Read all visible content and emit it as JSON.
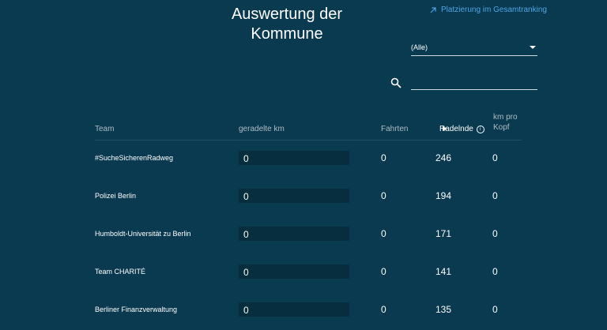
{
  "header": {
    "title_line1": "Auswertung der",
    "title_line2": "Kommune",
    "ranking_link": "Platzierung im Gesamtranking"
  },
  "filter": {
    "selected": "(Alle)"
  },
  "search": {
    "value": ""
  },
  "table": {
    "columns": {
      "team": "Team",
      "km": "geradelte km",
      "fahrten": "Fahrten",
      "radelnde": "Radelnde",
      "kmpro_line1": "km pro",
      "kmpro_line2": "Kopf"
    },
    "rows": [
      {
        "team": "#SucheSicherenRadweg",
        "km": "0",
        "fahrten": "0",
        "radelnde": "246",
        "kmpro": "0"
      },
      {
        "team": "Polizei Berlin",
        "km": "0",
        "fahrten": "0",
        "radelnde": "194",
        "kmpro": "0"
      },
      {
        "team": "Humboldt-Universität zu Berlin",
        "km": "0",
        "fahrten": "0",
        "radelnde": "171",
        "kmpro": "0"
      },
      {
        "team": "Team CHARITÉ",
        "km": "0",
        "fahrten": "0",
        "radelnde": "141",
        "kmpro": "0"
      },
      {
        "team": "Berliner Finanzverwaltung",
        "km": "0",
        "fahrten": "0",
        "radelnde": "135",
        "kmpro": "0"
      }
    ]
  }
}
